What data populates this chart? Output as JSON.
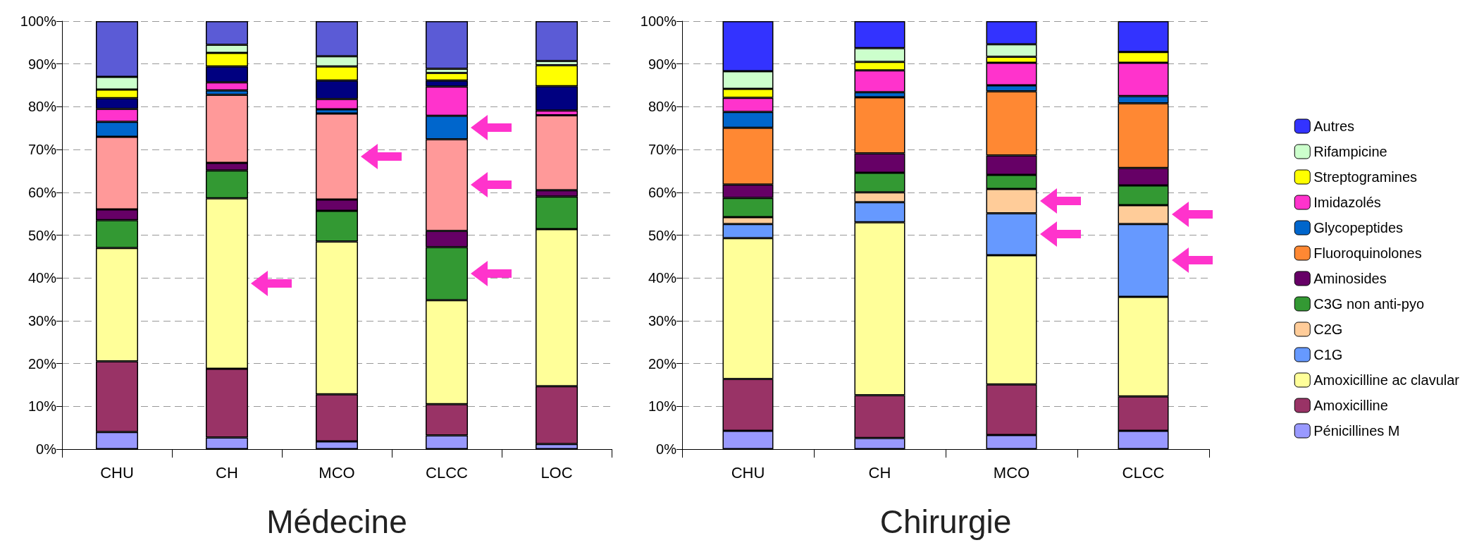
{
  "chart_data": [
    {
      "type": "bar",
      "stacked": true,
      "xlabel": "Médecine",
      "categories": [
        "CHU",
        "CH",
        "MCO",
        "CLCC",
        "LOC"
      ],
      "ylim": [
        0,
        100
      ],
      "yticks": [
        {
          "value": 0,
          "label": "0%"
        },
        {
          "value": 10,
          "label": "10%"
        },
        {
          "value": 20,
          "label": "20%"
        },
        {
          "value": 30,
          "label": "30%"
        },
        {
          "value": 40,
          "label": "40%"
        },
        {
          "value": 50,
          "label": "50%"
        },
        {
          "value": 60,
          "label": "60%"
        },
        {
          "value": 70,
          "label": "70%"
        },
        {
          "value": 80,
          "label": "80%"
        },
        {
          "value": 90,
          "label": "90%"
        },
        {
          "value": 100,
          "label": "100%"
        }
      ],
      "grid": "y",
      "legend": false,
      "series": [
        {
          "color": "#9999ff",
          "values": [
            4,
            2.7,
            1.8,
            3.2,
            1.2
          ]
        },
        {
          "color": "#993366",
          "values": [
            16.5,
            16.1,
            11,
            7.3,
            13.5
          ]
        },
        {
          "color": "#ffff99",
          "values": [
            26.5,
            39.8,
            35.7,
            24.3,
            36.7
          ]
        },
        {
          "color": "#339933",
          "values": [
            6.5,
            6.5,
            7.2,
            12.4,
            7.6
          ]
        },
        {
          "color": "#660066",
          "values": [
            2.5,
            1.8,
            2.6,
            3.8,
            1.5
          ]
        },
        {
          "color": "#ff9999",
          "values": [
            17,
            15.9,
            20.1,
            21.4,
            17.5
          ]
        },
        {
          "color": "#0066cc",
          "values": [
            3.5,
            1,
            1,
            5.5,
            0
          ]
        },
        {
          "color": "#ff33cc",
          "values": [
            3,
            1.9,
            2.4,
            6.8,
            1.1
          ]
        },
        {
          "color": "#000080",
          "values": [
            2.5,
            3.7,
            4.3,
            1.4,
            5.7
          ]
        },
        {
          "color": "#ffff00",
          "values": [
            2,
            3.2,
            3.3,
            1.8,
            4.9
          ]
        },
        {
          "color": "#ccffcc",
          "values": [
            3,
            1.9,
            2.4,
            1,
            1
          ]
        },
        {
          "color": "#5b5bd6",
          "values": [
            13,
            5.5,
            8.2,
            11.1,
            9.3
          ]
        }
      ]
    },
    {
      "type": "bar",
      "stacked": true,
      "xlabel": "Chirurgie",
      "categories": [
        "CHU",
        "CH",
        "MCO",
        "CLCC"
      ],
      "ylim": [
        0,
        100
      ],
      "yticks": [
        {
          "value": 0,
          "label": "0%"
        },
        {
          "value": 10,
          "label": "10%"
        },
        {
          "value": 20,
          "label": "20%"
        },
        {
          "value": 30,
          "label": "30%"
        },
        {
          "value": 40,
          "label": "40%"
        },
        {
          "value": 50,
          "label": "50%"
        },
        {
          "value": 60,
          "label": "60%"
        },
        {
          "value": 70,
          "label": "70%"
        },
        {
          "value": 80,
          "label": "80%"
        },
        {
          "value": 90,
          "label": "90%"
        },
        {
          "value": 100,
          "label": "100%"
        }
      ],
      "grid": "y",
      "legend": "right",
      "series": [
        {
          "name": "Pénicillines M",
          "color": "#9999ff",
          "values": [
            4.3,
            2.6,
            3.3,
            4.3
          ]
        },
        {
          "name": "Amoxicilline",
          "color": "#993366",
          "values": [
            12.1,
            10,
            11.8,
            8
          ]
        },
        {
          "name": "Amoxicilline ac clavular",
          "color": "#ffff99",
          "values": [
            32.9,
            40.4,
            30.2,
            23.3
          ]
        },
        {
          "name": "C1G",
          "color": "#6699ff",
          "values": [
            3.3,
            4.7,
            9.8,
            17
          ]
        },
        {
          "name": "C2G",
          "color": "#ffcc99",
          "values": [
            1.6,
            2.3,
            5.7,
            4.4
          ]
        },
        {
          "name": "C3G non anti-pyo",
          "color": "#339933",
          "values": [
            4.5,
            4.6,
            3.3,
            4.6
          ]
        },
        {
          "name": "Aminosides",
          "color": "#660066",
          "values": [
            3.1,
            4.5,
            4.5,
            4.1
          ]
        },
        {
          "name": "Fluoroquinolones",
          "color": "#ff8833",
          "values": [
            13.3,
            13.1,
            15,
            15.1
          ]
        },
        {
          "name": "Glycopeptides",
          "color": "#0066cc",
          "values": [
            3.7,
            1.2,
            1.4,
            1.7
          ]
        },
        {
          "name": "Imidazolés",
          "color": "#ff33cc",
          "values": [
            3.3,
            5.1,
            5.3,
            7.8
          ]
        },
        {
          "name": "Streptogramines",
          "color": "#ffff00",
          "values": [
            2.1,
            2,
            1.4,
            2.5
          ]
        },
        {
          "name": "Rifampicine",
          "color": "#ccffcc",
          "values": [
            4.1,
            3.2,
            2.9,
            0
          ]
        },
        {
          "name": "Autres",
          "color": "#3333ff",
          "values": [
            11.7,
            6.3,
            5.4,
            7.2
          ]
        }
      ]
    }
  ]
}
